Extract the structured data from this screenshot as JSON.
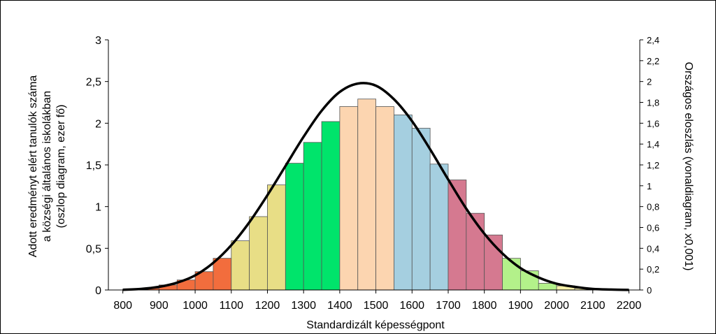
{
  "chart_data": {
    "type": "bar",
    "xlabel": "Standardizált képességpont",
    "ylabel_lines": [
      "Adott eredményt elért tanulók száma",
      "a községi általános iskolákban",
      "(oszlop diagram, ezer fő)"
    ],
    "y2label": "Országos eloszlás (vonaldiagram, x0,001)",
    "x_ticks": [
      "800",
      "900",
      "1000",
      "1100",
      "1200",
      "1300",
      "1400",
      "1500",
      "1600",
      "1700",
      "1800",
      "1900",
      "2000",
      "2100",
      "2200"
    ],
    "x_tick_values": [
      800,
      900,
      1000,
      1100,
      1200,
      1300,
      1400,
      1500,
      1600,
      1700,
      1800,
      1900,
      2000,
      2100,
      2200
    ],
    "xlim": [
      760,
      2230
    ],
    "y_ticks": [
      "0",
      "0,5",
      "1",
      "1,5",
      "2",
      "2,5",
      "3"
    ],
    "y_tick_values": [
      0,
      0.5,
      1,
      1.5,
      2,
      2.5,
      3
    ],
    "ylim": [
      0,
      3
    ],
    "y2_ticks": [
      "0",
      "0,2",
      "0,4",
      "0,6",
      "0,8",
      "1",
      "1,2",
      "1,4",
      "1,6",
      "1,8",
      "2",
      "2,2",
      "2,4"
    ],
    "y2_tick_values": [
      0,
      0.2,
      0.4,
      0.6,
      0.8,
      1,
      1.2,
      1.4,
      1.6,
      1.8,
      2,
      2.2,
      2.4
    ],
    "y2lim": [
      0,
      2.4
    ],
    "grid": false,
    "bin_width": 50,
    "bars": [
      {
        "x": 800,
        "value": 0.01,
        "color": "#f26d3d"
      },
      {
        "x": 850,
        "value": 0.02,
        "color": "#f26d3d"
      },
      {
        "x": 900,
        "value": 0.06,
        "color": "#f26d3d"
      },
      {
        "x": 950,
        "value": 0.12,
        "color": "#f26d3d"
      },
      {
        "x": 1000,
        "value": 0.22,
        "color": "#f26d3d"
      },
      {
        "x": 1050,
        "value": 0.38,
        "color": "#f26d3d"
      },
      {
        "x": 1100,
        "value": 0.59,
        "color": "#e8de86"
      },
      {
        "x": 1150,
        "value": 0.88,
        "color": "#e8de86"
      },
      {
        "x": 1200,
        "value": 1.26,
        "color": "#e8de86"
      },
      {
        "x": 1250,
        "value": 1.52,
        "color": "#00e46b"
      },
      {
        "x": 1300,
        "value": 1.77,
        "color": "#00e46b"
      },
      {
        "x": 1350,
        "value": 2.02,
        "color": "#00e46b"
      },
      {
        "x": 1400,
        "value": 2.2,
        "color": "#fcd5b0"
      },
      {
        "x": 1450,
        "value": 2.29,
        "color": "#fcd5b0"
      },
      {
        "x": 1500,
        "value": 2.2,
        "color": "#fcd5b0"
      },
      {
        "x": 1550,
        "value": 2.1,
        "color": "#a5cfe0"
      },
      {
        "x": 1600,
        "value": 1.94,
        "color": "#a5cfe0"
      },
      {
        "x": 1650,
        "value": 1.51,
        "color": "#a5cfe0"
      },
      {
        "x": 1700,
        "value": 1.32,
        "color": "#d57990"
      },
      {
        "x": 1750,
        "value": 0.92,
        "color": "#d57990"
      },
      {
        "x": 1800,
        "value": 0.66,
        "color": "#d57990"
      },
      {
        "x": 1850,
        "value": 0.38,
        "color": "#b3f18a"
      },
      {
        "x": 1900,
        "value": 0.23,
        "color": "#b3f18a"
      },
      {
        "x": 1950,
        "value": 0.08,
        "color": "#b3f18a"
      },
      {
        "x": 2000,
        "value": 0.05,
        "color": "#f6f0a8"
      },
      {
        "x": 2050,
        "value": 0.02,
        "color": "#f6f0a8"
      },
      {
        "x": 2100,
        "value": 0.01,
        "color": "#f6f0a8"
      }
    ],
    "curve": {
      "name": "Országos eloszlás",
      "axis": "right",
      "color": "#000000",
      "x": [
        800,
        850,
        900,
        950,
        1000,
        1050,
        1100,
        1150,
        1200,
        1250,
        1300,
        1350,
        1400,
        1450,
        1500,
        1550,
        1600,
        1650,
        1700,
        1750,
        1800,
        1850,
        1900,
        1950,
        2000,
        2050,
        2100,
        2150,
        2200
      ],
      "y": [
        0.002,
        0.01,
        0.03,
        0.07,
        0.14,
        0.26,
        0.43,
        0.65,
        0.91,
        1.19,
        1.47,
        1.72,
        1.9,
        1.98,
        1.96,
        1.83,
        1.62,
        1.35,
        1.06,
        0.78,
        0.54,
        0.35,
        0.21,
        0.12,
        0.06,
        0.03,
        0.01,
        0.004,
        0.001
      ]
    }
  }
}
